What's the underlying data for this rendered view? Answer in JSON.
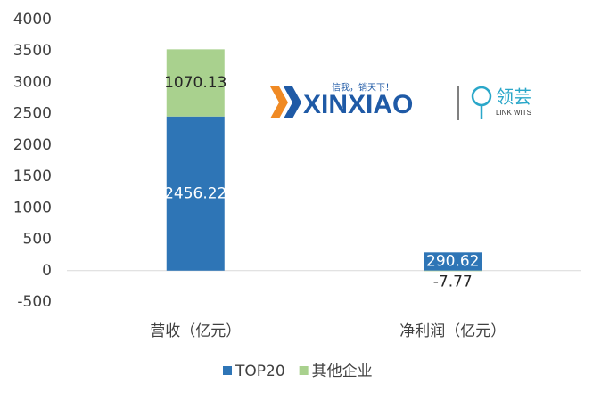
{
  "chart_data": {
    "type": "stacked_bar",
    "categories": [
      "营收（亿元）",
      "净利润（亿元）"
    ],
    "series": [
      {
        "name": "TOP20",
        "color": "#2e75b6",
        "values": [
          2456.22,
          290.62
        ]
      },
      {
        "name": "其他企业",
        "color": "#a9d18e",
        "values": [
          1070.13,
          -7.77
        ]
      }
    ],
    "ylim": [
      -500,
      4000
    ],
    "yticks": [
      -500,
      0,
      500,
      1000,
      1500,
      2000,
      2500,
      3000,
      3500,
      4000
    ],
    "grid": false,
    "legend": "bottom"
  },
  "logo": {
    "brand": "XINXIAO",
    "slogan": "信我，销天下！",
    "partner": "领芸",
    "partner_en": "LINK WITS"
  }
}
